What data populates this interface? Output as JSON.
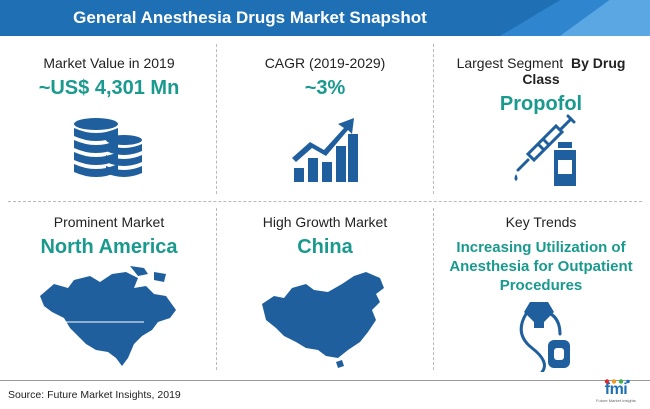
{
  "header": {
    "title": "General Anesthesia Drugs Market Snapshot"
  },
  "cells": {
    "market_value": {
      "label": "Market Value in 2019",
      "value": "~US$ 4,301 Mn",
      "icon": "coin-stack-icon"
    },
    "cagr": {
      "label": "CAGR (2019-2029)",
      "value": "~3%",
      "icon": "growth-chart-icon"
    },
    "largest_segment": {
      "label": "Largest Segment",
      "label_bold": "By Drug Class",
      "value": "Propofol",
      "icon": "syringe-vial-icon"
    },
    "prominent_market": {
      "label": "Prominent Market",
      "value": "North America",
      "icon": "north-america-map-icon"
    },
    "high_growth": {
      "label": "High Growth Market",
      "value": "China",
      "icon": "china-map-icon"
    },
    "key_trends": {
      "label": "Key Trends",
      "value": "Increasing Utilization of Anesthesia for Outpatient Procedures",
      "icon": "anesthesia-mask-icon"
    }
  },
  "footer": {
    "source": "Source: Future Market Insights, 2019",
    "logo": "fmi",
    "logo_tagline": "Future Market Insights"
  },
  "colors": {
    "brand": "#1e6fb3",
    "accent": "#1a9a8e",
    "icon": "#1f5f9e"
  }
}
